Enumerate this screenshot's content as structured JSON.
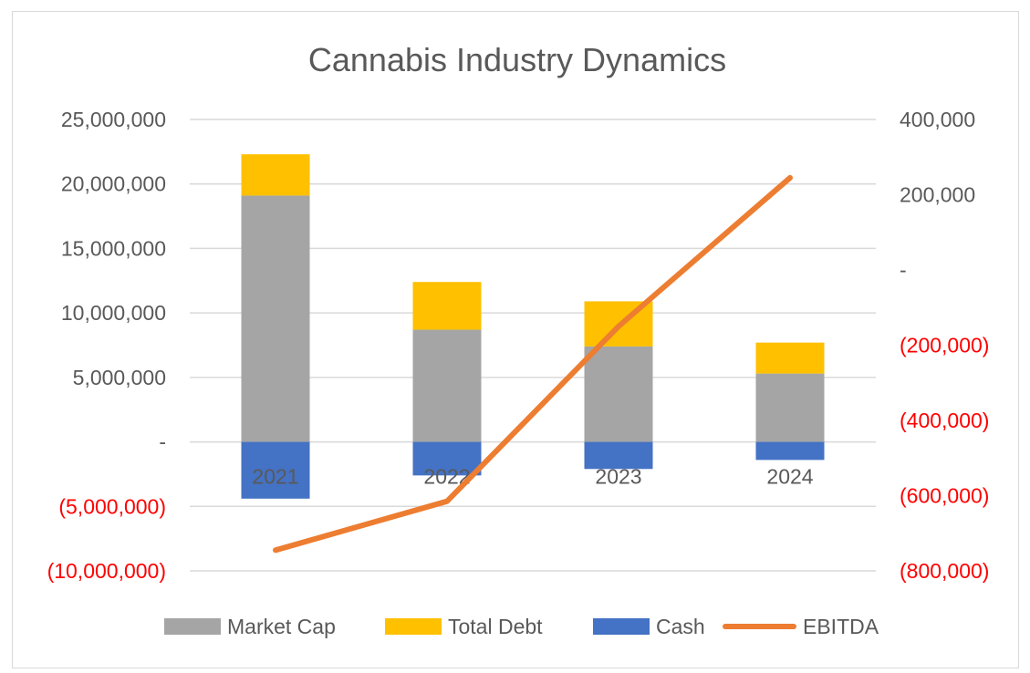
{
  "chart_data": {
    "type": "bar",
    "title": "Cannabis Industry Dynamics",
    "categories": [
      "2021",
      "2022",
      "2023",
      "2024"
    ],
    "series": [
      {
        "name": "Market Cap",
        "kind": "stacked-bar",
        "axis": "left",
        "color": "#a5a5a5",
        "values": [
          19100000,
          8700000,
          7400000,
          5300000
        ]
      },
      {
        "name": "Total Debt",
        "kind": "stacked-bar",
        "axis": "left",
        "color": "#ffc000",
        "values": [
          3200000,
          3700000,
          3500000,
          2400000
        ]
      },
      {
        "name": "Cash",
        "kind": "stacked-bar",
        "axis": "left",
        "color": "#4472c4",
        "values": [
          -4400000,
          -2600000,
          -2100000,
          -1400000
        ]
      },
      {
        "name": "EBITDA",
        "kind": "line",
        "axis": "right",
        "color": "#ed7d31",
        "values": [
          -745000,
          -615000,
          -150000,
          245000
        ]
      }
    ],
    "y_left": {
      "min": -10000000,
      "max": 25000000,
      "step": 5000000,
      "tick_labels": [
        "(10,000,000)",
        "(5,000,000)",
        "-",
        "5,000,000",
        "10,000,000",
        "15,000,000",
        "20,000,000",
        "25,000,000"
      ]
    },
    "y_right": {
      "min": -800000,
      "max": 400000,
      "step": 200000,
      "tick_labels": [
        "(800,000)",
        "(600,000)",
        "(400,000)",
        "(200,000)",
        "-",
        "200,000",
        "400,000"
      ]
    },
    "negative_label_color": "#ff0000",
    "gridlines": true,
    "legend_position": "bottom"
  }
}
